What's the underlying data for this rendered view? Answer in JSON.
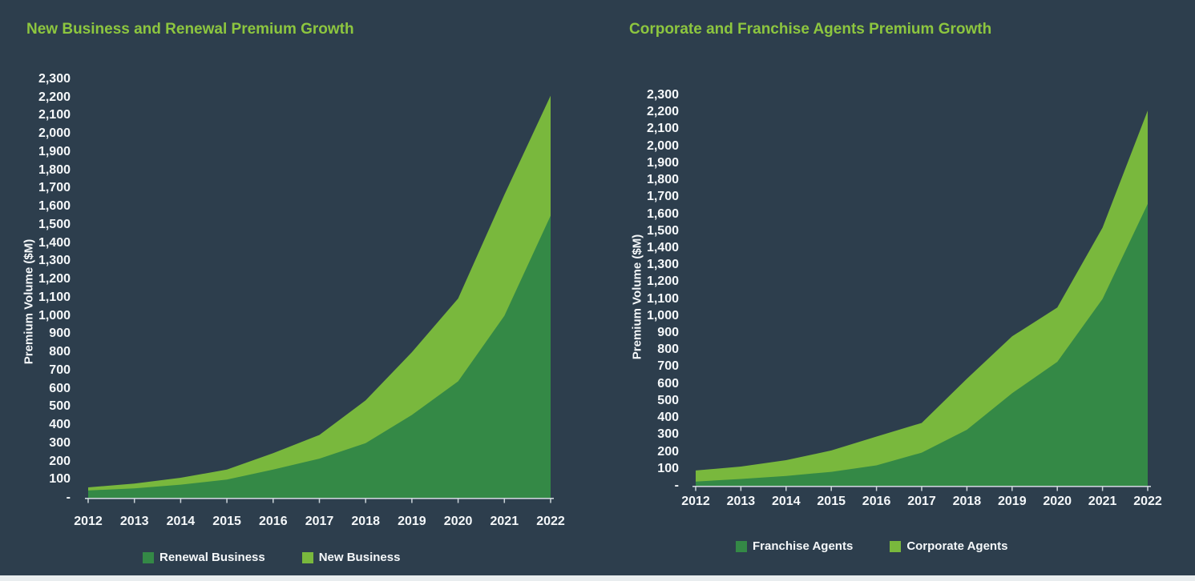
{
  "colors": {
    "background": "#2d3e4d",
    "title_green": "#8dc63f",
    "area_dark_green": "#348946",
    "area_light_green": "#79b83d",
    "axis_line": "#ccd5da",
    "label_text": "#f5f8fa",
    "bottom_bar": "#e9edef"
  },
  "chart_data": [
    {
      "type": "area",
      "stacked": true,
      "title": "New Business and Renewal Premium Growth",
      "ylabel": "Premium Volume ($M)",
      "xlabel": "",
      "categories": [
        "2012",
        "2013",
        "2014",
        "2015",
        "2016",
        "2017",
        "2018",
        "2019",
        "2020",
        "2021",
        "2022"
      ],
      "series": [
        {
          "name": "Renewal Business",
          "color": "#348946",
          "values": [
            40,
            52,
            72,
            100,
            155,
            215,
            300,
            455,
            640,
            1000,
            1550
          ]
        },
        {
          "name": "New Business",
          "color": "#79b83d",
          "values": [
            17,
            26,
            38,
            55,
            90,
            130,
            235,
            345,
            455,
            665,
            660
          ]
        }
      ],
      "stacked_totals": [
        57,
        78,
        110,
        155,
        245,
        345,
        535,
        800,
        1095,
        1665,
        2210
      ],
      "ylim": [
        0,
        2300
      ],
      "ytick_step": 100,
      "grid": false,
      "legend_position": "bottom",
      "ytick_labels": [
        "2,300",
        "2,200",
        "2,100",
        "2,000",
        "1,900",
        "1,800",
        "1,700",
        "1,600",
        "1,500",
        "1,400",
        "1,300",
        "1,200",
        "1,100",
        "1,000",
        "900",
        "800",
        "700",
        "600",
        "500",
        "400",
        "300",
        "200",
        "100",
        "-"
      ]
    },
    {
      "type": "area",
      "stacked": true,
      "title": "Corporate and Franchise Agents Premium Growth",
      "ylabel": "Premium Volume ($M)",
      "xlabel": "",
      "categories": [
        "2012",
        "2013",
        "2014",
        "2015",
        "2016",
        "2017",
        "2018",
        "2019",
        "2020",
        "2021",
        "2022"
      ],
      "series": [
        {
          "name": "Franchise Agents",
          "color": "#348946",
          "values": [
            25,
            40,
            58,
            82,
            120,
            195,
            330,
            545,
            730,
            1100,
            1660
          ]
        },
        {
          "name": "Corporate Agents",
          "color": "#79b83d",
          "values": [
            65,
            73,
            93,
            126,
            170,
            175,
            300,
            335,
            320,
            420,
            550
          ]
        }
      ],
      "stacked_totals": [
        90,
        113,
        151,
        208,
        290,
        370,
        630,
        880,
        1050,
        1520,
        2210
      ],
      "ylim": [
        0,
        2300
      ],
      "ytick_step": 100,
      "grid": false,
      "legend_position": "bottom",
      "ytick_labels": [
        "2,300",
        "2,200",
        "2,100",
        "2,000",
        "1,900",
        "1,800",
        "1,700",
        "1,600",
        "1,500",
        "1,400",
        "1,300",
        "1,200",
        "1,100",
        "1,000",
        "900",
        "800",
        "700",
        "600",
        "500",
        "400",
        "300",
        "200",
        "100",
        "-"
      ]
    }
  ]
}
